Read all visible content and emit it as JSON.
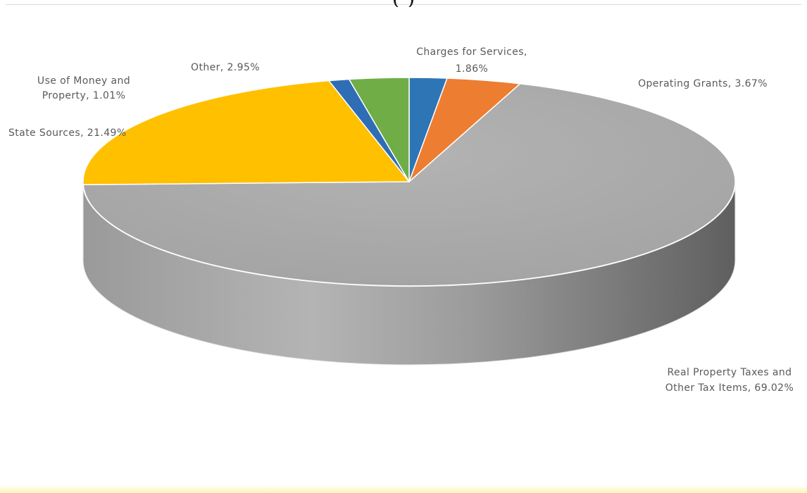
{
  "title_fragment": "(                    )",
  "chart_data": {
    "type": "pie",
    "three_d": true,
    "start_angle_deg": 90,
    "direction": "clockwise",
    "slices": [
      {
        "label_lines": [
          "Charges for Services,",
          "1.86%"
        ],
        "value": 1.86,
        "color": "#2e75b6"
      },
      {
        "label_lines": [
          "Operating Grants, 3.67%"
        ],
        "value": 3.67,
        "color": "#ed7d31"
      },
      {
        "label_lines": [
          "Real Property Taxes and",
          "Other Tax Items, 69.02%"
        ],
        "value": 69.02,
        "color": "#a5a5a5"
      },
      {
        "label_lines": [
          "State Sources, 21.49%"
        ],
        "value": 21.49,
        "color": "#ffc000"
      },
      {
        "label_lines": [
          "Use of Money and",
          "Property, 1.01%"
        ],
        "value": 1.01,
        "color": "#2f6db5"
      },
      {
        "label_lines": [
          "Other, 2.95%"
        ],
        "value": 2.95,
        "color": "#70ad47"
      }
    ]
  }
}
